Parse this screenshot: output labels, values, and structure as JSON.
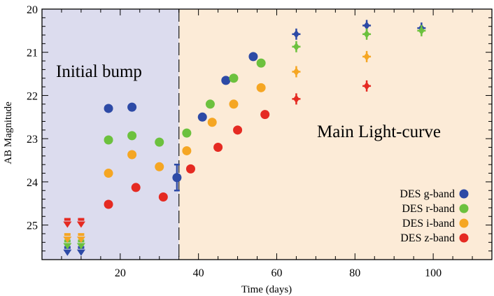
{
  "chart_data": {
    "type": "scatter",
    "title": "",
    "xlabel": "Time (days)",
    "ylabel": "AB Magnitude",
    "xlim": [
      0,
      115
    ],
    "ylim": [
      25.8,
      20
    ],
    "y_inverted": true,
    "grid": false,
    "x_ticks": [
      20,
      40,
      60,
      80,
      100
    ],
    "y_ticks": [
      20,
      21,
      22,
      23,
      24,
      25
    ],
    "divider_x": 35,
    "regions": [
      {
        "label": "Initial bump",
        "x_range": [
          0,
          35
        ],
        "color": "#dcdcee"
      },
      {
        "label": "Main Light-curve",
        "x_range": [
          35,
          115
        ],
        "color": "#fcebd7"
      }
    ],
    "legend_position": "lower-right",
    "series": [
      {
        "name": "DES g-band",
        "color": "#2d4aa6",
        "points": [
          {
            "x": 17,
            "y": 22.3
          },
          {
            "x": 23,
            "y": 22.27
          },
          {
            "x": 34.5,
            "y": 23.9,
            "err": 0.3
          },
          {
            "x": 41,
            "y": 22.5
          },
          {
            "x": 47,
            "y": 21.65
          },
          {
            "x": 54,
            "y": 21.1
          },
          {
            "x": 65,
            "y": 20.58,
            "cross": true
          },
          {
            "x": 83,
            "y": 20.38,
            "cross": true
          },
          {
            "x": 97,
            "y": 20.44,
            "cross": true
          }
        ],
        "upper_limits": [
          {
            "x": 6.5,
            "y": 25.6
          },
          {
            "x": 10,
            "y": 25.6
          }
        ]
      },
      {
        "name": "DES r-band",
        "color": "#6cc13e",
        "points": [
          {
            "x": 17,
            "y": 23.03
          },
          {
            "x": 23,
            "y": 22.93
          },
          {
            "x": 30,
            "y": 23.08
          },
          {
            "x": 37,
            "y": 22.87
          },
          {
            "x": 43,
            "y": 22.2
          },
          {
            "x": 49,
            "y": 21.6
          },
          {
            "x": 56,
            "y": 21.25
          },
          {
            "x": 65,
            "y": 20.87,
            "cross": true
          },
          {
            "x": 83,
            "y": 20.58,
            "cross": true
          },
          {
            "x": 97,
            "y": 20.5,
            "cross": true
          }
        ],
        "upper_limits": [
          {
            "x": 6.5,
            "y": 25.45
          },
          {
            "x": 10,
            "y": 25.45
          }
        ]
      },
      {
        "name": "DES i-band",
        "color": "#f5a623",
        "points": [
          {
            "x": 17,
            "y": 23.8
          },
          {
            "x": 23,
            "y": 23.37
          },
          {
            "x": 30,
            "y": 23.65
          },
          {
            "x": 37,
            "y": 23.28
          },
          {
            "x": 43.5,
            "y": 22.62
          },
          {
            "x": 49,
            "y": 22.2
          },
          {
            "x": 56,
            "y": 21.82
          },
          {
            "x": 65,
            "y": 21.45,
            "cross": true
          },
          {
            "x": 83,
            "y": 21.1,
            "cross": true
          }
        ],
        "upper_limits": [
          {
            "x": 6.5,
            "y": 25.3
          },
          {
            "x": 10,
            "y": 25.3
          }
        ]
      },
      {
        "name": "DES z-band",
        "color": "#e52a22",
        "points": [
          {
            "x": 17,
            "y": 24.52
          },
          {
            "x": 24,
            "y": 24.13
          },
          {
            "x": 31,
            "y": 24.35
          },
          {
            "x": 38,
            "y": 23.7
          },
          {
            "x": 45,
            "y": 23.2
          },
          {
            "x": 50,
            "y": 22.8
          },
          {
            "x": 57,
            "y": 22.44
          },
          {
            "x": 65,
            "y": 22.08,
            "cross": true
          },
          {
            "x": 83,
            "y": 21.78,
            "cross": true
          }
        ],
        "upper_limits": [
          {
            "x": 6.5,
            "y": 24.95
          },
          {
            "x": 10,
            "y": 24.95
          }
        ]
      }
    ]
  }
}
